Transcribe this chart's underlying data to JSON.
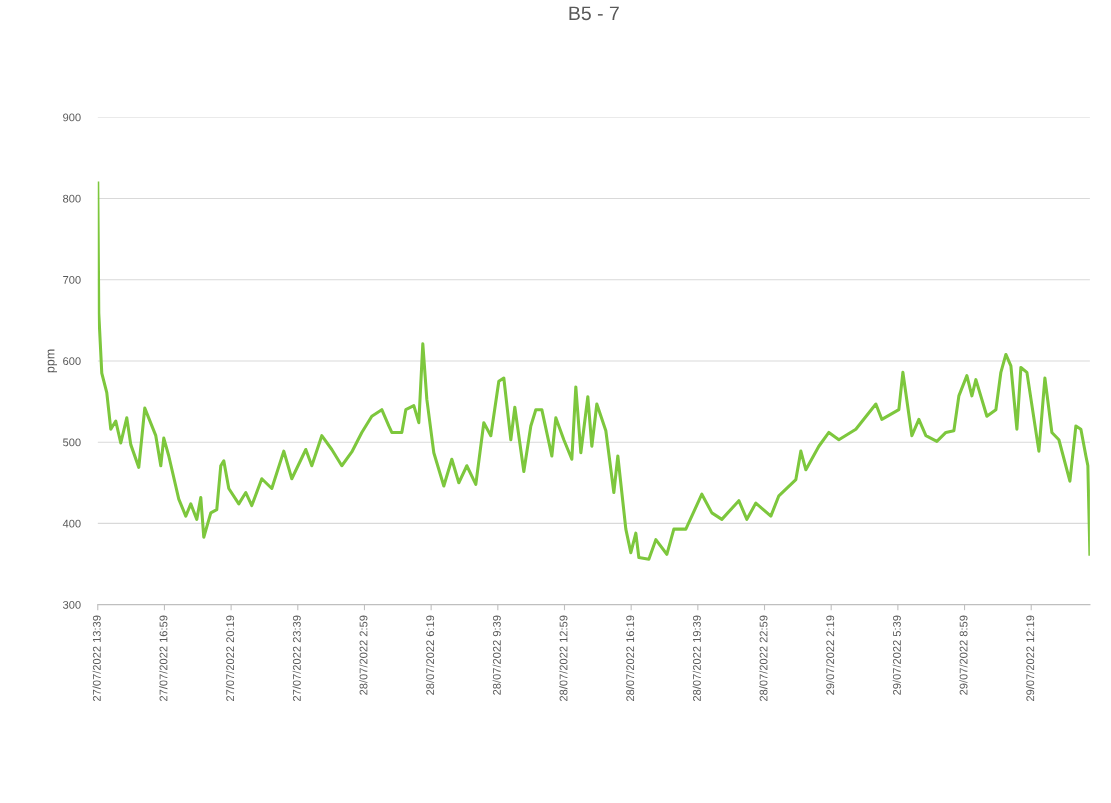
{
  "chart_data": {
    "type": "line",
    "title": "B5 - 7",
    "ylabel": "ppm",
    "x": [
      "2022-07-27T13:39",
      "2022-07-27T13:42",
      "2022-07-27T13:51",
      "2022-07-27T14:06",
      "2022-07-27T14:18",
      "2022-07-27T14:33",
      "2022-07-27T14:48",
      "2022-07-27T15:06",
      "2022-07-27T15:18",
      "2022-07-27T15:42",
      "2022-07-27T16:00",
      "2022-07-27T16:33",
      "2022-07-27T16:48",
      "2022-07-27T16:57",
      "2022-07-27T17:12",
      "2022-07-27T17:42",
      "2022-07-27T18:03",
      "2022-07-27T18:18",
      "2022-07-27T18:36",
      "2022-07-27T18:48",
      "2022-07-27T18:57",
      "2022-07-27T19:18",
      "2022-07-27T19:36",
      "2022-07-27T19:48",
      "2022-07-27T19:57",
      "2022-07-27T20:12",
      "2022-07-27T20:42",
      "2022-07-27T21:03",
      "2022-07-27T21:21",
      "2022-07-27T21:51",
      "2022-07-27T22:21",
      "2022-07-27T22:57",
      "2022-07-27T23:21",
      "2022-07-28T00:03",
      "2022-07-28T00:21",
      "2022-07-28T00:51",
      "2022-07-28T01:21",
      "2022-07-28T01:51",
      "2022-07-28T02:21",
      "2022-07-28T02:51",
      "2022-07-28T03:21",
      "2022-07-28T03:51",
      "2022-07-28T04:12",
      "2022-07-28T04:21",
      "2022-07-28T04:51",
      "2022-07-28T05:03",
      "2022-07-28T05:27",
      "2022-07-28T05:42",
      "2022-07-28T05:54",
      "2022-07-28T06:06",
      "2022-07-28T06:27",
      "2022-07-28T06:57",
      "2022-07-28T07:21",
      "2022-07-28T07:42",
      "2022-07-28T08:06",
      "2022-07-28T08:33",
      "2022-07-28T08:57",
      "2022-07-28T09:18",
      "2022-07-28T09:42",
      "2022-07-28T09:57",
      "2022-07-28T10:18",
      "2022-07-28T10:30",
      "2022-07-28T10:57",
      "2022-07-28T11:18",
      "2022-07-28T11:33",
      "2022-07-28T11:51",
      "2022-07-28T12:21",
      "2022-07-28T12:33",
      "2022-07-28T12:57",
      "2022-07-28T13:21",
      "2022-07-28T13:33",
      "2022-07-28T13:48",
      "2022-07-28T14:09",
      "2022-07-28T14:21",
      "2022-07-28T14:36",
      "2022-07-28T15:03",
      "2022-07-28T15:27",
      "2022-07-28T15:39",
      "2022-07-28T16:03",
      "2022-07-28T16:18",
      "2022-07-28T16:33",
      "2022-07-28T16:42",
      "2022-07-28T17:12",
      "2022-07-28T17:33",
      "2022-07-28T18:06",
      "2022-07-28T18:27",
      "2022-07-28T19:03",
      "2022-07-28T19:51",
      "2022-07-28T20:21",
      "2022-07-28T20:51",
      "2022-07-28T21:42",
      "2022-07-28T22:06",
      "2022-07-28T22:33",
      "2022-07-28T23:18",
      "2022-07-28T23:42",
      "2022-07-29T00:33",
      "2022-07-29T00:48",
      "2022-07-29T01:03",
      "2022-07-29T01:42",
      "2022-07-29T02:12",
      "2022-07-29T02:42",
      "2022-07-29T03:33",
      "2022-07-29T04:33",
      "2022-07-29T04:51",
      "2022-07-29T05:42",
      "2022-07-29T05:54",
      "2022-07-29T06:21",
      "2022-07-29T06:42",
      "2022-07-29T07:03",
      "2022-07-29T07:36",
      "2022-07-29T08:03",
      "2022-07-29T08:27",
      "2022-07-29T08:42",
      "2022-07-29T09:06",
      "2022-07-29T09:21",
      "2022-07-29T09:33",
      "2022-07-29T10:06",
      "2022-07-29T10:33",
      "2022-07-29T10:48",
      "2022-07-29T11:03",
      "2022-07-29T11:18",
      "2022-07-29T11:36",
      "2022-07-29T11:48",
      "2022-07-29T12:06",
      "2022-07-29T12:42",
      "2022-07-29T13:00",
      "2022-07-29T13:21",
      "2022-07-29T13:42",
      "2022-07-29T14:15",
      "2022-07-29T14:33",
      "2022-07-29T14:48",
      "2022-07-29T15:03",
      "2022-07-29T15:09",
      "2022-07-29T15:15"
    ],
    "series": [
      {
        "color": "#7dc73d",
        "values": [
          819,
          659,
          585,
          561,
          516,
          526,
          499,
          530,
          497,
          469,
          542,
          508,
          471,
          505,
          483,
          430,
          409,
          424,
          405,
          432,
          383,
          413,
          417,
          471,
          477,
          443,
          424,
          438,
          422,
          455,
          443,
          489,
          455,
          491,
          471,
          508,
          491,
          471,
          488,
          512,
          532,
          540,
          520,
          512,
          512,
          540,
          545,
          524,
          621,
          553,
          487,
          446,
          479,
          450,
          471,
          448,
          524,
          508,
          575,
          579,
          503,
          543,
          464,
          520,
          540,
          540,
          483,
          530,
          503,
          479,
          568,
          487,
          556,
          495,
          547,
          514,
          438,
          483,
          393,
          364,
          388,
          358,
          356,
          380,
          362,
          393,
          393,
          436,
          413,
          405,
          428,
          405,
          425,
          409,
          434,
          454,
          489,
          466,
          495,
          512,
          503,
          516,
          547,
          528,
          540,
          586,
          508,
          528,
          508,
          501,
          512,
          514,
          557,
          582,
          557,
          577,
          532,
          540,
          586,
          608,
          594,
          516,
          592,
          586,
          489,
          579,
          512,
          503,
          452,
          520,
          516,
          483,
          471,
          362
        ]
      }
    ],
    "xlim": [
      "2022-07-27T13:39",
      "2022-07-29T15:15"
    ],
    "xticks": [
      {
        "value": "2022-07-27T13:39",
        "label": "27/07/2022 13:39"
      },
      {
        "value": "2022-07-27T16:59",
        "label": "27/07/2022 16:59"
      },
      {
        "value": "2022-07-27T20:19",
        "label": "27/07/2022 20:19"
      },
      {
        "value": "2022-07-27T23:39",
        "label": "27/07/2022 23:39"
      },
      {
        "value": "2022-07-28T02:59",
        "label": "28/07/2022 2:59"
      },
      {
        "value": "2022-07-28T06:19",
        "label": "28/07/2022 6:19"
      },
      {
        "value": "2022-07-28T09:39",
        "label": "28/07/2022 9:39"
      },
      {
        "value": "2022-07-28T12:59",
        "label": "28/07/2022 12:59"
      },
      {
        "value": "2022-07-28T16:19",
        "label": "28/07/2022 16:19"
      },
      {
        "value": "2022-07-28T19:39",
        "label": "28/07/2022 19:39"
      },
      {
        "value": "2022-07-28T22:59",
        "label": "28/07/2022 22:59"
      },
      {
        "value": "2022-07-29T02:19",
        "label": "29/07/2022 2:19"
      },
      {
        "value": "2022-07-29T05:39",
        "label": "29/07/2022 5:39"
      },
      {
        "value": "2022-07-29T08:59",
        "label": "29/07/2022 8:59"
      },
      {
        "value": "2022-07-29T12:19",
        "label": "29/07/2022 12:19"
      }
    ],
    "ylim": [
      300,
      900
    ],
    "yticks": [
      300,
      400,
      500,
      600,
      700,
      800,
      900
    ],
    "grid": "y",
    "marker": "none",
    "line_style": "solid"
  }
}
